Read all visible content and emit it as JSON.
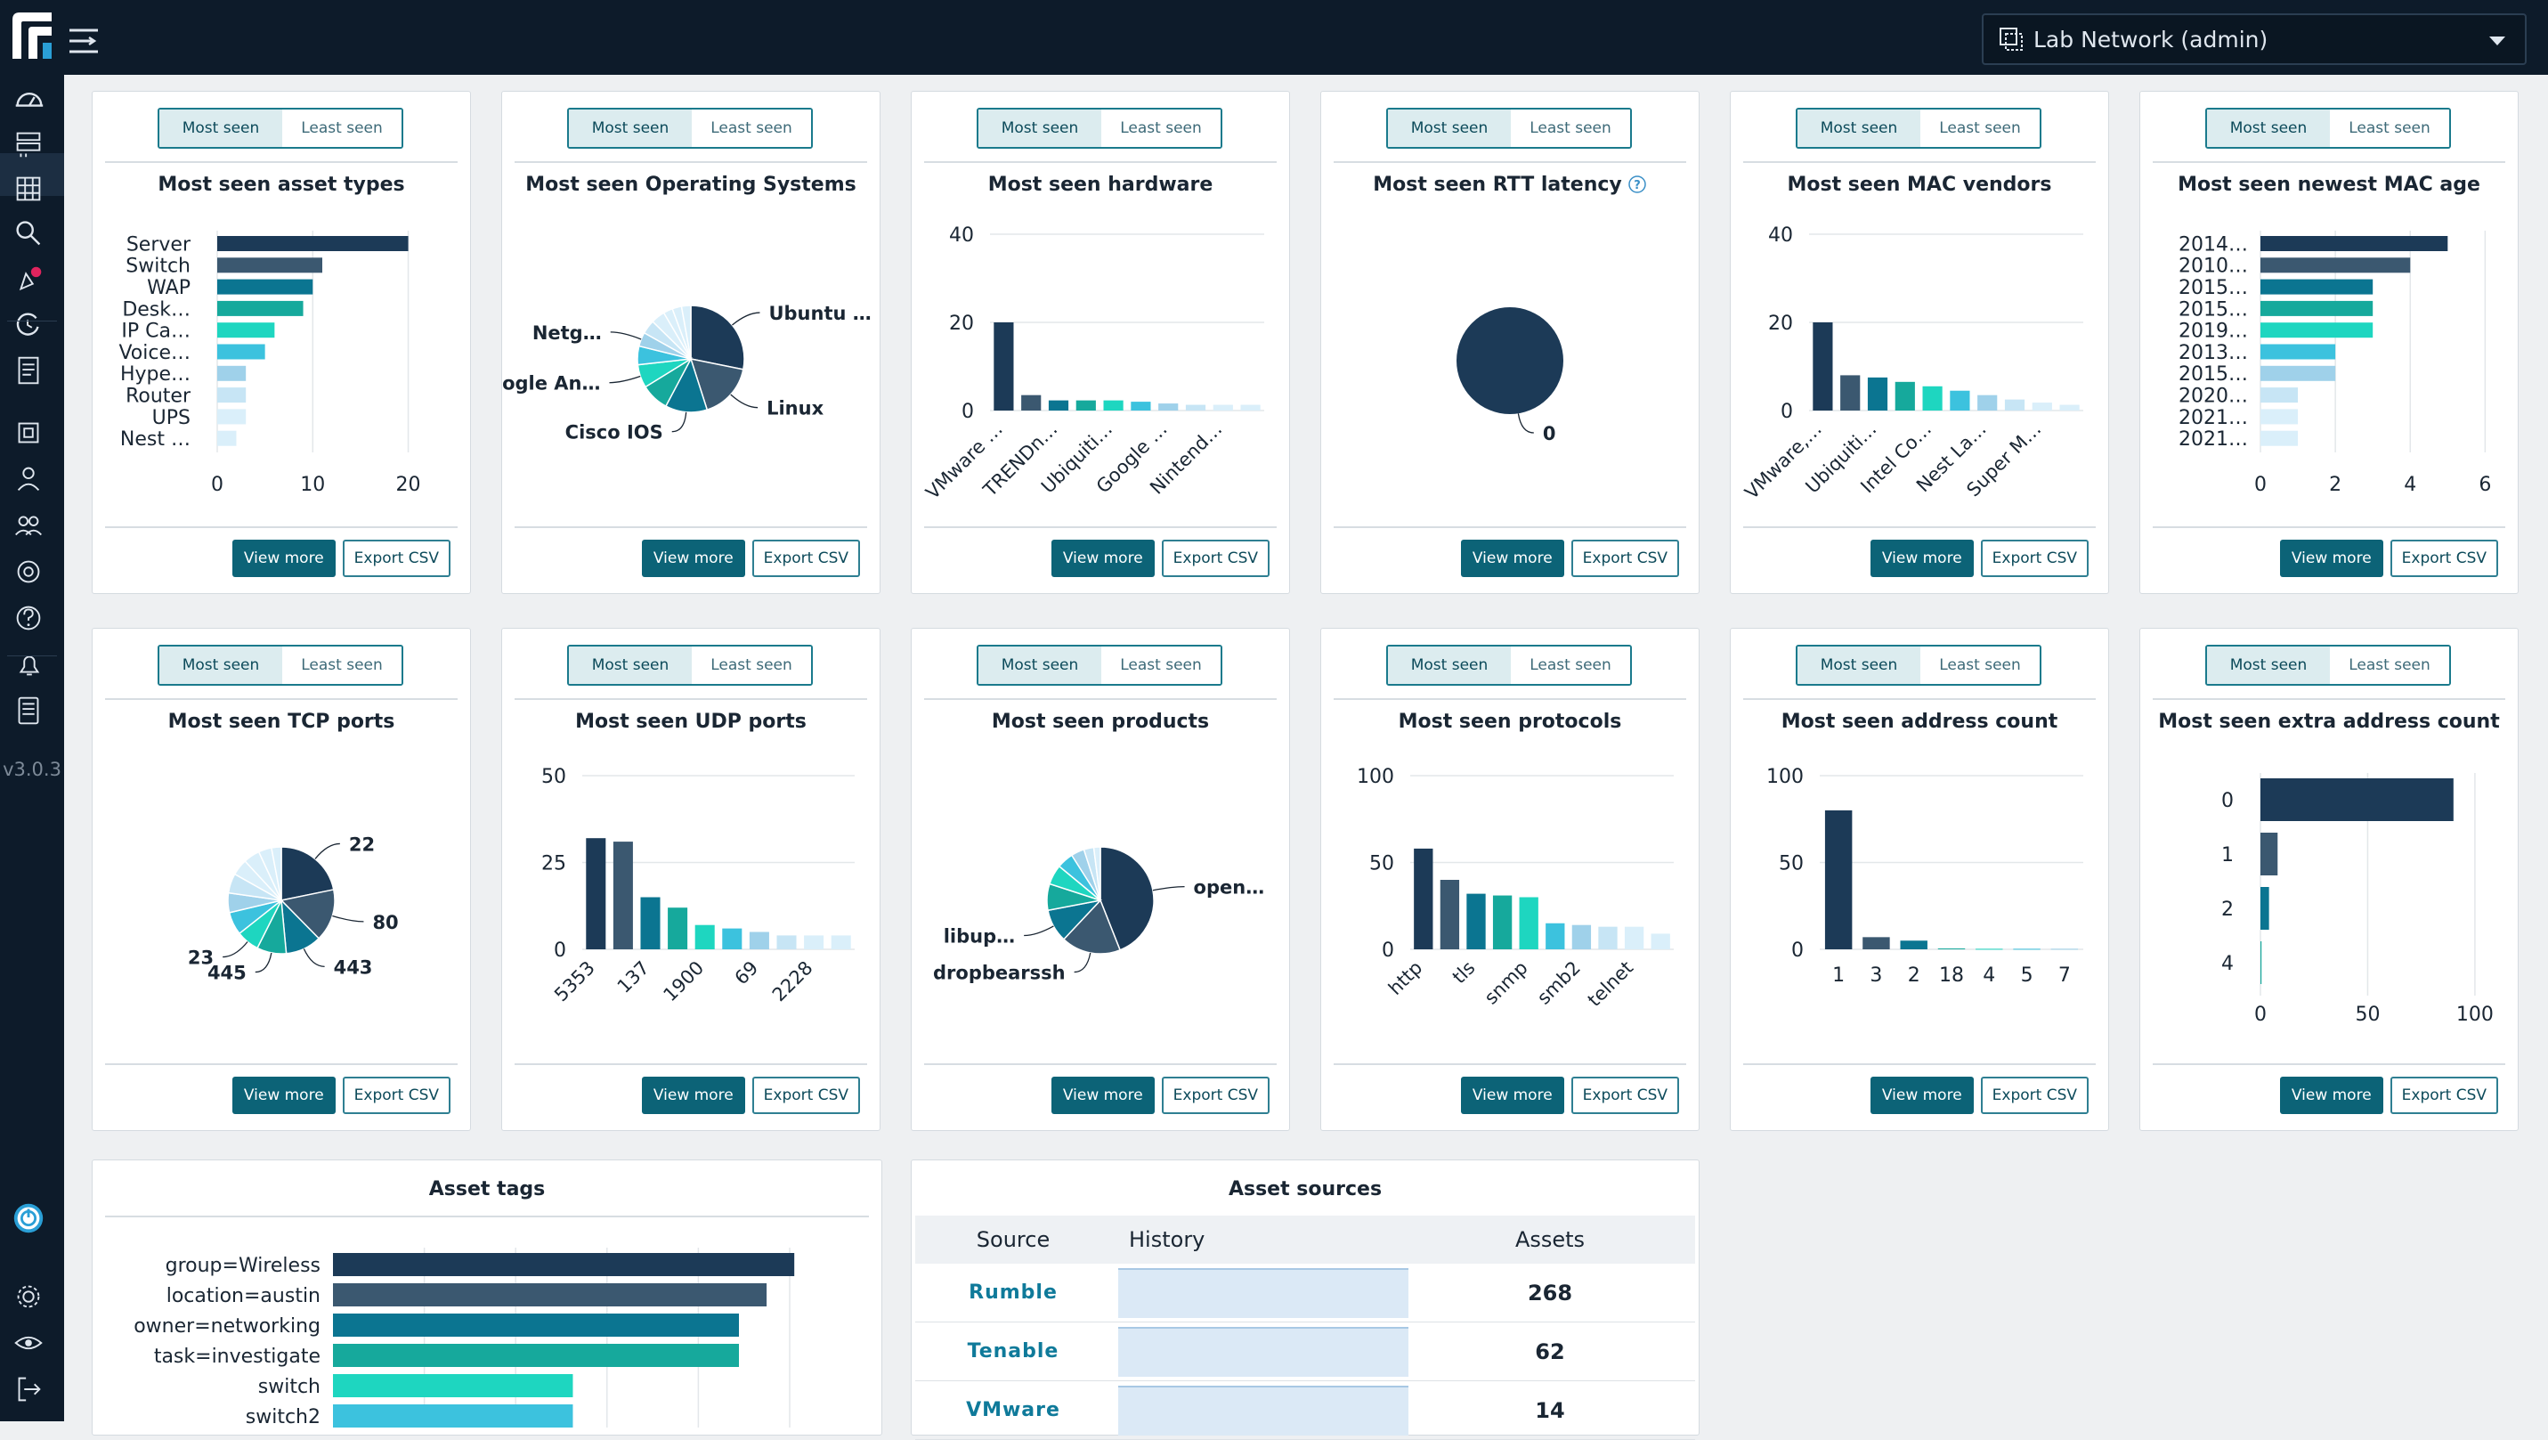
{
  "topbar": {
    "network": "Lab Network (admin)"
  },
  "sidebar": {
    "version": "v3.0.3",
    "icons": [
      "dashboard-icon",
      "assets-icon",
      "grid-icon",
      "search-icon",
      "alerts-icon",
      "tasks-icon",
      "reports-icon",
      "sites-icon",
      "users-icon",
      "groups-icon",
      "integrations-icon",
      "help-icon",
      "notifications-icon",
      "docs-icon",
      "power-icon",
      "settings-icon",
      "visibility-icon",
      "logout-icon"
    ]
  },
  "toggle": {
    "most": "Most seen",
    "least": "Least seen"
  },
  "buttons": {
    "view": "View more",
    "export": "Export CSV"
  },
  "cards": [
    {
      "title": "Most seen asset types"
    },
    {
      "title": "Most seen Operating Systems"
    },
    {
      "title": "Most seen hardware"
    },
    {
      "title": "Most seen RTT latency"
    },
    {
      "title": "Most seen MAC vendors"
    },
    {
      "title": "Most seen newest MAC age"
    },
    {
      "title": "Most seen TCP ports"
    },
    {
      "title": "Most seen UDP ports"
    },
    {
      "title": "Most seen products"
    },
    {
      "title": "Most seen protocols"
    },
    {
      "title": "Most seen address count"
    },
    {
      "title": "Most seen extra address count"
    }
  ],
  "tags": {
    "title": "Asset tags"
  },
  "sources": {
    "title": "Asset sources",
    "headers": [
      "Source",
      "History",
      "Assets"
    ],
    "rows": [
      {
        "source": "Rumble",
        "assets": "268"
      },
      {
        "source": "Tenable",
        "assets": "62"
      },
      {
        "source": "VMware",
        "assets": "14"
      }
    ]
  },
  "colors": [
    "#1c3a57",
    "#3b5870",
    "#0b7591",
    "#16a99c",
    "#1ed6c0",
    "#3cc2de",
    "#9fd1ea",
    "#c7e5f5",
    "#daeffa"
  ],
  "chart_data": [
    {
      "type": "bar",
      "orientation": "horizontal",
      "title": "Most seen asset types",
      "categories": [
        "Server",
        "Switch",
        "WAP",
        "Desk…",
        "IP Ca…",
        "Voice…",
        "Hype…",
        "Router",
        "UPS",
        "Nest …"
      ],
      "values": [
        20,
        11,
        10,
        9,
        6,
        5,
        3,
        3,
        3,
        2
      ],
      "xlim": [
        0,
        22
      ],
      "ticks": [
        0,
        10,
        20
      ]
    },
    {
      "type": "pie",
      "title": "Most seen Operating Systems",
      "values": [
        20,
        12,
        9,
        6,
        5,
        4,
        3,
        3,
        3,
        2,
        2,
        2
      ],
      "labels": {
        "0": "Ubuntu …",
        "1": "Linux",
        "2": "Cisco IOS",
        "4": "Google An…",
        "6": "Netg…"
      }
    },
    {
      "type": "bar",
      "title": "Most seen hardware",
      "categories": [
        "VMware …",
        "",
        "TRENDn…",
        "",
        "Ubiquiti…",
        "",
        "Google …",
        "",
        "Nintend…",
        ""
      ],
      "values": [
        20,
        3.5,
        2.3,
        2.3,
        2.3,
        2,
        1.6,
        1.3,
        1.3,
        1.3
      ],
      "ylim": [
        0,
        40
      ],
      "ticks": [
        0,
        20,
        40
      ]
    },
    {
      "type": "pie",
      "title": "Most seen RTT latency",
      "values": [
        1
      ],
      "labels": {
        "0": "0"
      }
    },
    {
      "type": "bar",
      "title": "Most seen MAC vendors",
      "categories": [
        "VMware,…",
        "",
        "Ubiquiti…",
        "",
        "Intel Co…",
        "",
        "Nest La…",
        "",
        "Super M…",
        ""
      ],
      "values": [
        20,
        8,
        7.5,
        6.5,
        5.5,
        4.5,
        3.5,
        2.5,
        1.8,
        1.3
      ],
      "ylim": [
        0,
        40
      ],
      "ticks": [
        0,
        20,
        40
      ]
    },
    {
      "type": "bar",
      "orientation": "horizontal",
      "title": "Most seen newest MAC age",
      "categories": [
        "2014…",
        "2010…",
        "2015…",
        "2015…",
        "2019…",
        "2013…",
        "2015…",
        "2020…",
        "2021…",
        "2021…"
      ],
      "values": [
        5,
        4,
        3,
        3,
        3,
        2,
        2,
        1,
        1,
        1
      ],
      "xlim": [
        0,
        6.3
      ],
      "ticks": [
        0,
        2,
        4,
        6
      ]
    },
    {
      "type": "pie",
      "title": "Most seen TCP ports",
      "values": [
        22,
        16,
        11,
        9,
        7,
        7,
        6,
        6,
        5,
        5,
        4,
        3
      ],
      "labels": {
        "0": "22",
        "1": "80",
        "2": "443",
        "3": "445",
        "4": "23"
      }
    },
    {
      "type": "bar",
      "title": "Most seen UDP ports",
      "categories": [
        "5353",
        "",
        "137",
        "",
        "1900",
        "",
        "69",
        "",
        "2228",
        ""
      ],
      "values": [
        32,
        31,
        15,
        12,
        7,
        6,
        5,
        4,
        4,
        4
      ],
      "ylim": [
        0,
        50
      ],
      "ticks": [
        0,
        25,
        50
      ]
    },
    {
      "type": "pie",
      "title": "Most seen products",
      "values": [
        44,
        18,
        10,
        8,
        6,
        5,
        4,
        3,
        2
      ],
      "labels": {
        "0": "open…",
        "1": "dropbearssh",
        "2": "libup…"
      }
    },
    {
      "type": "bar",
      "title": "Most seen protocols",
      "categories": [
        "http",
        "",
        "tls",
        "",
        "snmp",
        "",
        "smb2",
        "",
        "telnet",
        ""
      ],
      "values": [
        58,
        40,
        32,
        31,
        30,
        15,
        14,
        13,
        13,
        9
      ],
      "ylim": [
        0,
        100
      ],
      "ticks": [
        0,
        50,
        100
      ]
    },
    {
      "type": "bar",
      "title": "Most seen address count",
      "categories": [
        "1",
        "3",
        "2",
        "18",
        "4",
        "5",
        "7"
      ],
      "values": [
        80,
        7,
        5,
        0.5,
        0.3,
        0.3,
        0.3
      ],
      "ylim": [
        0,
        100
      ],
      "ticks": [
        0,
        50,
        100
      ]
    },
    {
      "type": "bar",
      "orientation": "horizontal",
      "title": "Most seen extra address count",
      "categories": [
        "0",
        "1",
        "2",
        "4"
      ],
      "values": [
        90,
        8,
        4,
        0.5
      ],
      "xlim": [
        0,
        110
      ],
      "ticks": [
        0,
        50,
        100
      ]
    },
    {
      "type": "bar",
      "orientation": "horizontal",
      "title": "Asset tags",
      "categories": [
        "group=Wireless",
        "location=austin",
        "owner=networking",
        "task=investigate",
        "switch",
        "switch2"
      ],
      "values": [
        100,
        94,
        88,
        88,
        52,
        52
      ],
      "xlim": [
        0,
        110
      ]
    }
  ]
}
